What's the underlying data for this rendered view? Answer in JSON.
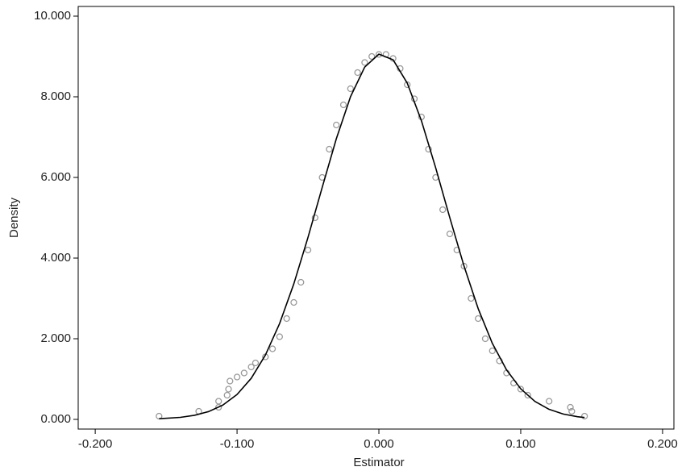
{
  "chart_data": {
    "type": "scatter",
    "x_label": "Estimator",
    "y_label": "Density",
    "xlim": [
      -0.212,
      0.208
    ],
    "ylim": [
      -0.24,
      10.24
    ],
    "xticks": [
      {
        "value": -0.2,
        "label": "-0.200"
      },
      {
        "value": -0.1,
        "label": "-0.100"
      },
      {
        "value": 0,
        "label": "0.000"
      },
      {
        "value": 0.1,
        "label": "0.100"
      },
      {
        "value": 0.2,
        "label": "0.200"
      }
    ],
    "yticks": [
      {
        "value": 0,
        "label": "0.000"
      },
      {
        "value": 2,
        "label": "2.000"
      },
      {
        "value": 4,
        "label": "4.000"
      },
      {
        "value": 6,
        "label": "6.000"
      },
      {
        "value": 8,
        "label": "8.000"
      },
      {
        "value": 10,
        "label": "10.000"
      }
    ],
    "grid": false,
    "series": [
      {
        "type": "scatter",
        "color": "#999999",
        "x": [
          -0.155,
          -0.127,
          -0.113,
          -0.113,
          -0.107,
          -0.106,
          -0.105,
          -0.1,
          -0.095,
          -0.09,
          -0.087,
          -0.08,
          -0.075,
          -0.07,
          -0.065,
          -0.06,
          -0.055,
          -0.05,
          -0.045,
          -0.04,
          -0.035,
          -0.03,
          -0.025,
          -0.02,
          -0.015,
          -0.01,
          -0.005,
          0.0,
          0.005,
          0.01,
          0.015,
          0.02,
          0.025,
          0.03,
          0.035,
          0.04,
          0.045,
          0.05,
          0.055,
          0.06,
          0.065,
          0.07,
          0.075,
          0.08,
          0.085,
          0.09,
          0.095,
          0.1,
          0.105,
          0.12,
          0.135,
          0.136,
          0.145
        ],
        "values": [
          0.08,
          0.2,
          0.3,
          0.45,
          0.6,
          0.75,
          0.95,
          1.05,
          1.15,
          1.3,
          1.4,
          1.55,
          1.75,
          2.05,
          2.5,
          2.9,
          3.4,
          4.2,
          5.0,
          6.0,
          6.7,
          7.3,
          7.8,
          8.2,
          8.6,
          8.85,
          9.0,
          9.05,
          9.05,
          8.95,
          8.7,
          8.3,
          7.95,
          7.5,
          6.7,
          6.0,
          5.2,
          4.6,
          4.2,
          3.8,
          3.0,
          2.5,
          2.0,
          1.7,
          1.45,
          1.15,
          0.9,
          0.75,
          0.6,
          0.45,
          0.3,
          0.2,
          0.08
        ]
      },
      {
        "type": "line",
        "color": "#000000",
        "x": [
          -0.155,
          -0.14,
          -0.13,
          -0.12,
          -0.11,
          -0.1,
          -0.09,
          -0.08,
          -0.07,
          -0.06,
          -0.05,
          -0.04,
          -0.03,
          -0.02,
          -0.01,
          0,
          0.01,
          0.02,
          0.03,
          0.04,
          0.05,
          0.06,
          0.07,
          0.08,
          0.09,
          0.1,
          0.11,
          0.12,
          0.13,
          0.14,
          0.145
        ],
        "values": [
          0.016,
          0.05,
          0.101,
          0.194,
          0.355,
          0.618,
          1.019,
          1.597,
          2.377,
          3.359,
          4.511,
          5.749,
          6.96,
          8.002,
          8.736,
          9.058,
          8.918,
          8.339,
          7.405,
          6.244,
          5.001,
          3.804,
          2.747,
          1.884,
          1.227,
          0.759,
          0.446,
          0.249,
          0.132,
          0.066,
          0.046
        ]
      }
    ]
  }
}
